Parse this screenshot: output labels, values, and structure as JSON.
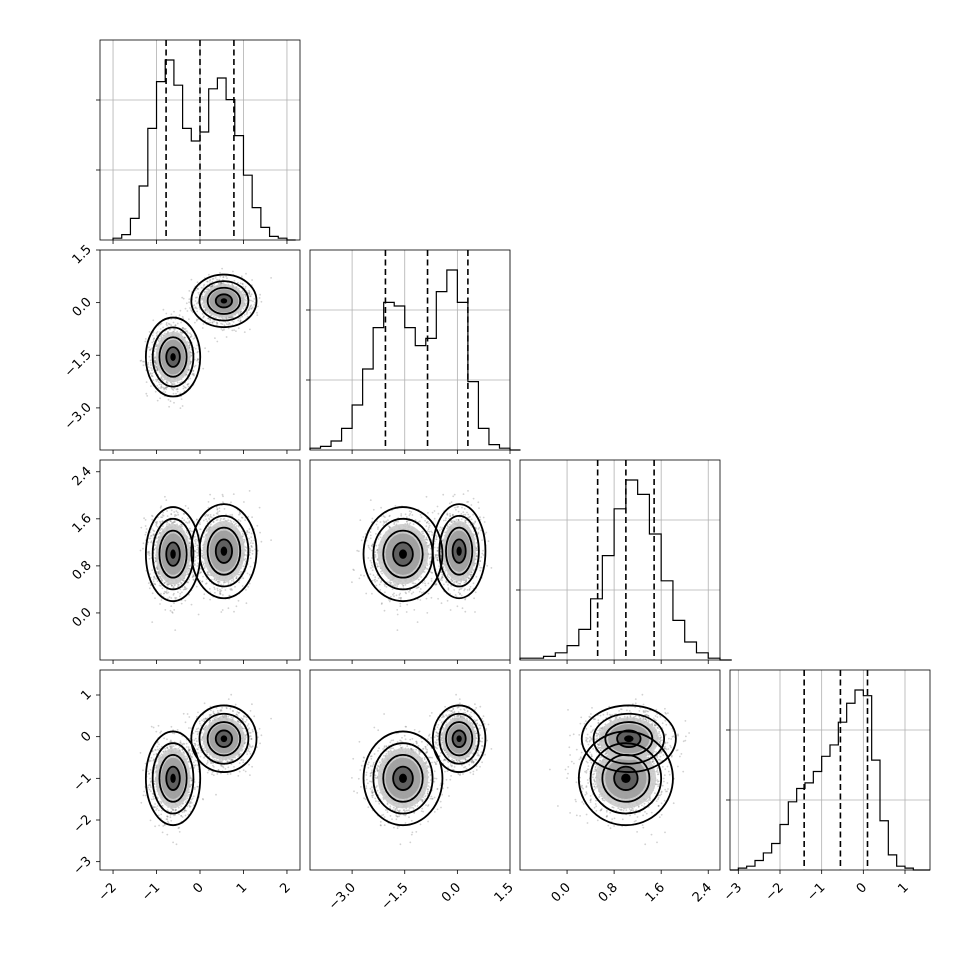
{
  "chart_data": {
    "type": "corner",
    "parameters": [
      {
        "hist": {
          "x": [
            -2.0,
            -1.8,
            -1.6,
            -1.4,
            -1.2,
            -1.0,
            -0.8,
            -0.6,
            -0.4,
            -0.2,
            0.0,
            0.2,
            0.4,
            0.6,
            0.8,
            1.0,
            1.2,
            1.4,
            1.6,
            1.8,
            2.0
          ],
          "counts": [
            0.01,
            0.03,
            0.12,
            0.3,
            0.62,
            0.88,
            1.0,
            0.86,
            0.62,
            0.55,
            0.6,
            0.84,
            0.9,
            0.78,
            0.58,
            0.36,
            0.18,
            0.07,
            0.02,
            0.01,
            0.0
          ]
        },
        "quantiles": [
          -0.78,
          0.0,
          0.78
        ],
        "ticks": [
          "−2",
          "−1",
          "0",
          "1",
          "2"
        ],
        "tick_values": [
          -2,
          -1,
          0,
          1,
          2
        ],
        "range": [
          -2.3,
          2.3
        ]
      },
      {
        "hist": {
          "x": [
            -4.2,
            -3.9,
            -3.6,
            -3.3,
            -3.0,
            -2.7,
            -2.4,
            -2.1,
            -1.8,
            -1.5,
            -1.2,
            -0.9,
            -0.6,
            -0.3,
            0.0,
            0.3,
            0.6,
            0.9,
            1.2,
            1.5
          ],
          "counts": [
            0.01,
            0.02,
            0.05,
            0.12,
            0.25,
            0.45,
            0.68,
            0.82,
            0.8,
            0.68,
            0.58,
            0.62,
            0.88,
            1.0,
            0.82,
            0.38,
            0.12,
            0.03,
            0.01,
            0.0
          ]
        },
        "quantiles": [
          -2.05,
          -0.85,
          0.3
        ],
        "ticks": [
          "−3.0",
          "−1.5",
          "0.0",
          "1.5"
        ],
        "tick_values": [
          -3.0,
          -1.5,
          0.0,
          1.5
        ],
        "range": [
          -4.2,
          1.5
        ]
      },
      {
        "hist": {
          "x": [
            -0.8,
            -0.6,
            -0.4,
            -0.2,
            0.0,
            0.2,
            0.4,
            0.6,
            0.8,
            1.0,
            1.2,
            1.4,
            1.6,
            1.8,
            2.0,
            2.2,
            2.4,
            2.6
          ],
          "counts": [
            0.01,
            0.01,
            0.02,
            0.04,
            0.08,
            0.17,
            0.34,
            0.58,
            0.84,
            1.0,
            0.92,
            0.7,
            0.44,
            0.22,
            0.1,
            0.04,
            0.01,
            0.0
          ]
        },
        "quantiles": [
          0.52,
          1.0,
          1.48
        ],
        "ticks": [
          "0.0",
          "0.8",
          "1.6",
          "2.4"
        ],
        "tick_values": [
          0.0,
          0.8,
          1.6,
          2.4
        ],
        "range": [
          -0.8,
          2.6
        ]
      },
      {
        "hist": {
          "x": [
            -3.2,
            -3.0,
            -2.8,
            -2.6,
            -2.4,
            -2.2,
            -2.0,
            -1.8,
            -1.6,
            -1.4,
            -1.2,
            -1.0,
            -0.8,
            -0.6,
            -0.4,
            -0.2,
            0.0,
            0.2,
            0.4,
            0.6,
            0.8,
            1.0,
            1.2,
            1.4
          ],
          "counts": [
            0.0,
            0.01,
            0.02,
            0.05,
            0.09,
            0.14,
            0.24,
            0.36,
            0.43,
            0.46,
            0.52,
            0.6,
            0.66,
            0.78,
            0.88,
            0.95,
            0.92,
            0.58,
            0.26,
            0.08,
            0.02,
            0.01,
            0.0,
            0.0
          ]
        },
        "quantiles": [
          -1.42,
          -0.55,
          0.1
        ],
        "ticks": [
          "−3",
          "−2",
          "−1",
          "0",
          "1"
        ],
        "tick_values": [
          -3,
          -2,
          -1,
          0,
          1
        ],
        "range": [
          -3.2,
          1.6
        ]
      }
    ],
    "y_axis_ticks": {
      "1": {
        "labels": [
          "1.5",
          "0.0",
          "−1.5",
          "−3.0"
        ],
        "values": [
          1.5,
          0.0,
          -1.5,
          -3.0
        ]
      },
      "2": {
        "labels": [
          "2.4",
          "1.6",
          "0.8",
          "0.0"
        ],
        "values": [
          2.4,
          1.6,
          0.8,
          0.0
        ]
      },
      "3": {
        "labels": [
          "1",
          "0",
          "−1",
          "−2",
          "−3"
        ],
        "values": [
          1,
          0,
          -1,
          -2,
          -3
        ]
      }
    },
    "mixture": {
      "component_1": {
        "mean": [
          -0.62,
          -1.55,
          1.0,
          -1.0
        ],
        "sd": [
          0.25,
          0.45,
          0.32,
          0.45
        ]
      },
      "component_2": {
        "mean": [
          0.55,
          0.05,
          1.05,
          -0.05
        ],
        "sd": [
          0.3,
          0.3,
          0.32,
          0.32
        ]
      }
    },
    "contour_levels_sigma": [
      0.5,
      1.0,
      1.5,
      2.0
    ],
    "grid": true,
    "hist_peak_ticks": 3
  }
}
